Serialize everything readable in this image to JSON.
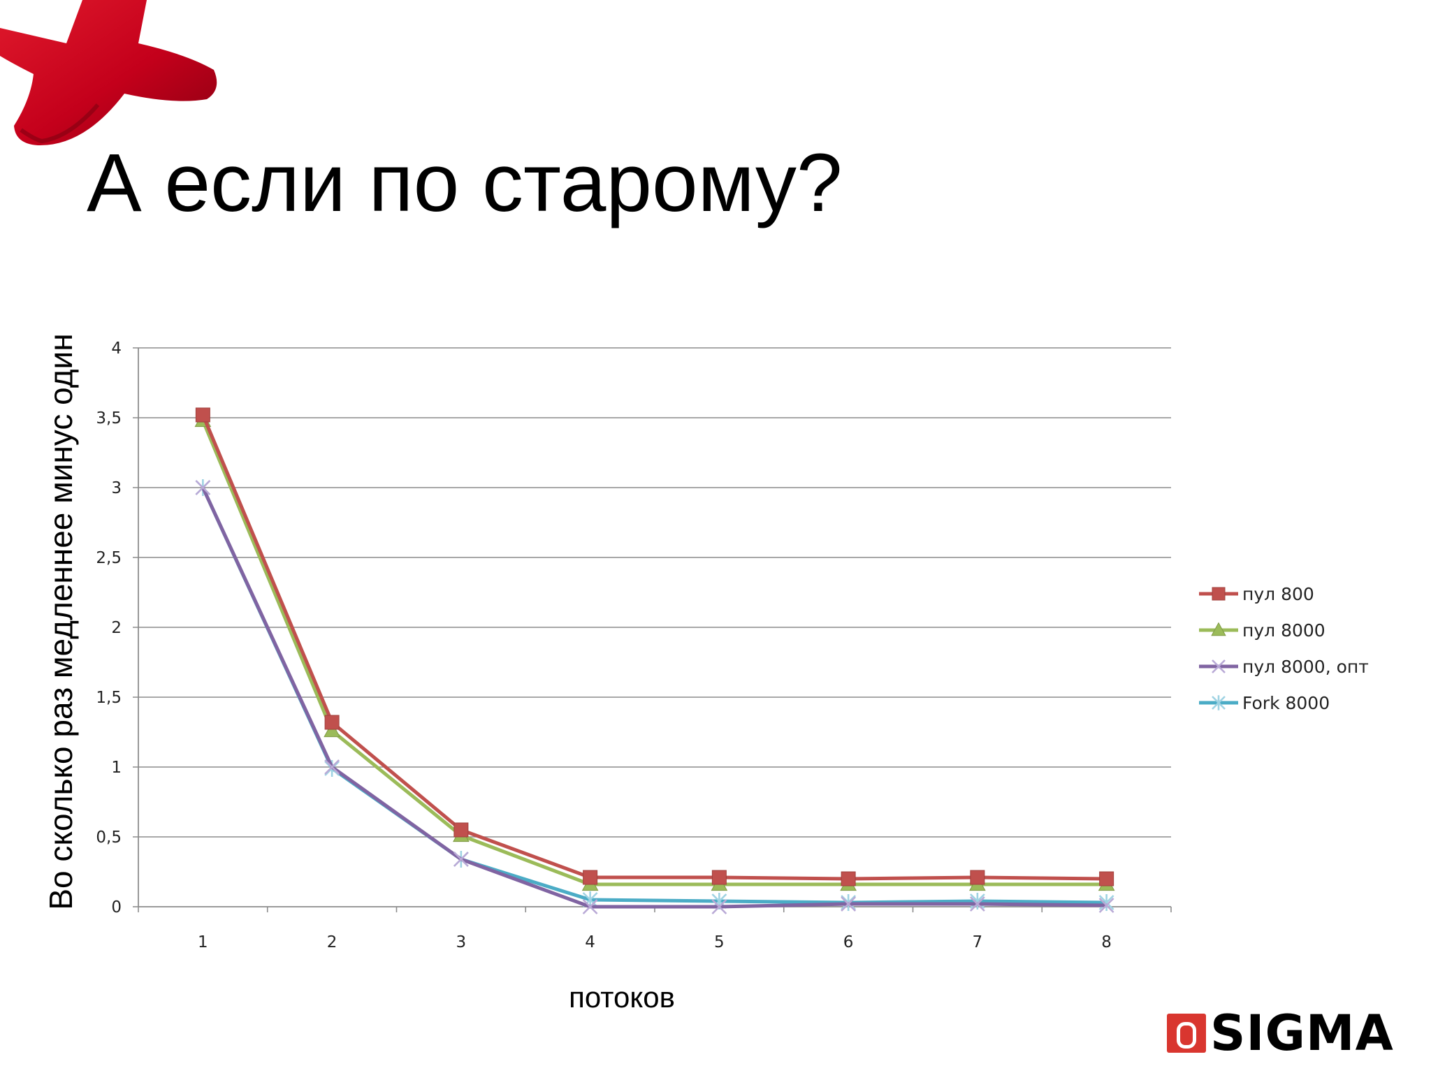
{
  "slide": {
    "title": "А если по старому?"
  },
  "brand": {
    "name": "SIGMA",
    "accent_color": "#d9362f",
    "decoration_color": "#c0001a"
  },
  "chart_data": {
    "type": "line",
    "xlabel": "потоков",
    "ylabel": "Во сколько раз медленнее минус один",
    "categories": [
      "1",
      "2",
      "3",
      "4",
      "5",
      "6",
      "7",
      "8"
    ],
    "ylim": [
      0,
      4
    ],
    "yticks": [
      "0",
      "0,5",
      "1",
      "1,5",
      "2",
      "2,5",
      "3",
      "3,5",
      "4"
    ],
    "grid": true,
    "legend_position": "right",
    "series": [
      {
        "name": "пул 800",
        "color": "#c0504d",
        "marker": "square",
        "values": [
          3.52,
          1.32,
          0.55,
          0.21,
          0.21,
          0.2,
          0.21,
          0.2
        ]
      },
      {
        "name": "пул 8000",
        "color": "#9bbb59",
        "marker": "triangle",
        "values": [
          3.48,
          1.26,
          0.51,
          0.16,
          0.16,
          0.16,
          0.16,
          0.16
        ]
      },
      {
        "name": "пул 8000, опт",
        "color": "#8064a2",
        "marker": "x",
        "values": [
          3.0,
          1.0,
          0.34,
          0.0,
          0.0,
          0.02,
          0.02,
          0.01
        ]
      },
      {
        "name": "Fork 8000",
        "color": "#4bacc6",
        "marker": "star",
        "values": [
          3.0,
          0.99,
          0.34,
          0.05,
          0.04,
          0.03,
          0.04,
          0.03
        ]
      }
    ]
  }
}
